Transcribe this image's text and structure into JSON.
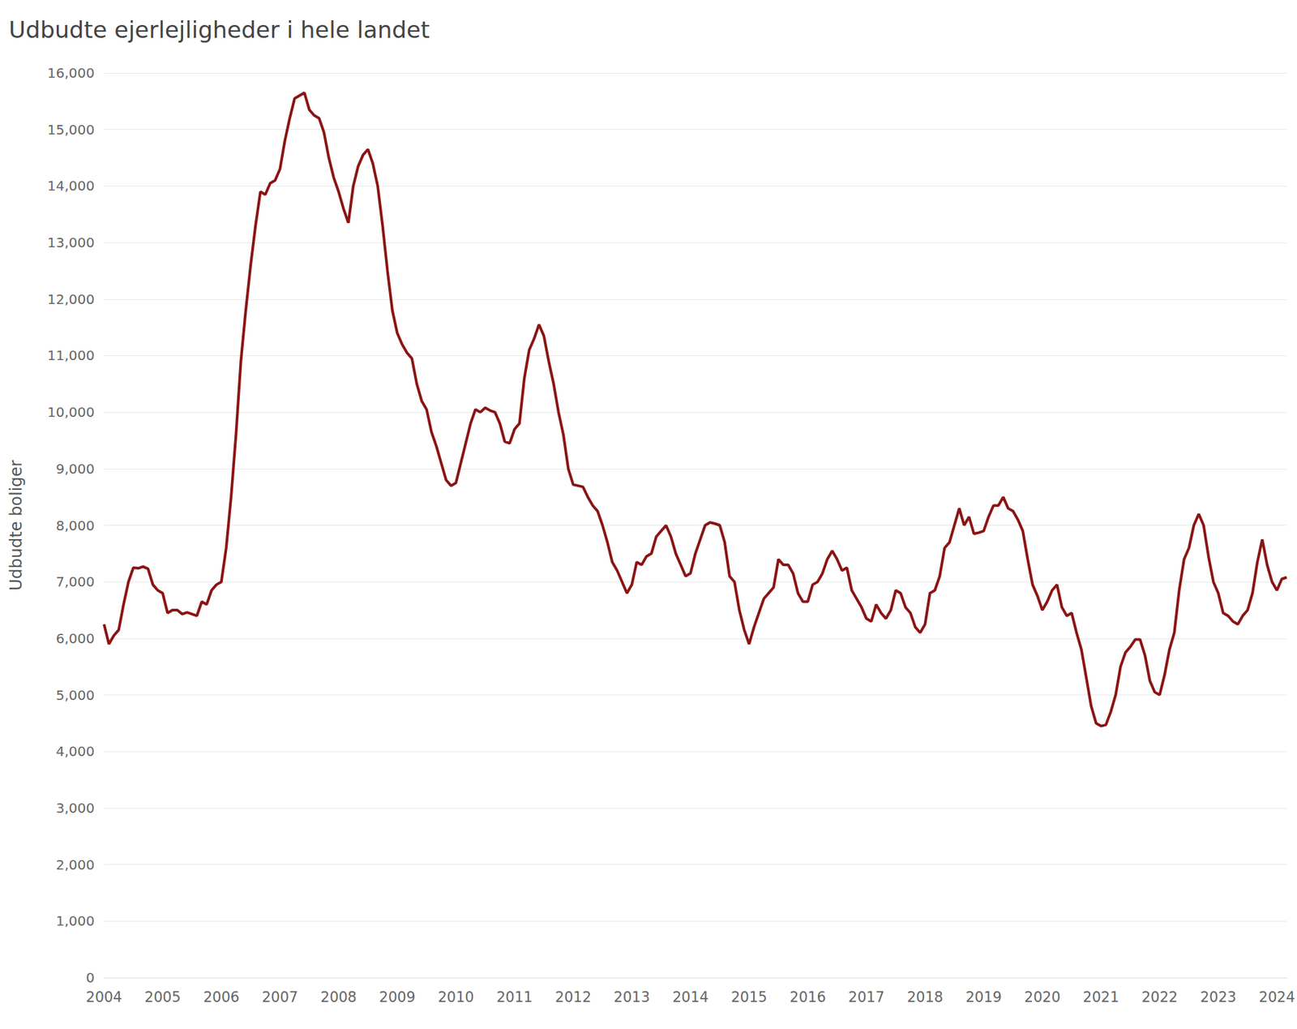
{
  "chart_data": {
    "type": "line",
    "title": "Udbudte ejerlejligheder i hele landet",
    "y_label": "Udbudte boliger",
    "color": "#8b1414",
    "grid": true,
    "categories": [
      "2004",
      null,
      null,
      null,
      null,
      null,
      null,
      null,
      null,
      null,
      null,
      null,
      "2005",
      null,
      null,
      null,
      null,
      null,
      null,
      null,
      null,
      null,
      null,
      null,
      "2006",
      null,
      null,
      null,
      null,
      null,
      null,
      null,
      null,
      null,
      null,
      null,
      "2007",
      null,
      null,
      null,
      null,
      null,
      null,
      null,
      null,
      null,
      null,
      null,
      "2008",
      null,
      null,
      null,
      null,
      null,
      null,
      null,
      null,
      null,
      null,
      null,
      "2009",
      null,
      null,
      null,
      null,
      null,
      null,
      null,
      null,
      null,
      null,
      null,
      "2010",
      null,
      null,
      null,
      null,
      null,
      null,
      null,
      null,
      null,
      null,
      null,
      "2011",
      null,
      null,
      null,
      null,
      null,
      null,
      null,
      null,
      null,
      null,
      null,
      "2012",
      null,
      null,
      null,
      null,
      null,
      null,
      null,
      null,
      null,
      null,
      null,
      "2013",
      null,
      null,
      null,
      null,
      null,
      null,
      null,
      null,
      null,
      null,
      null,
      "2014",
      null,
      null,
      null,
      null,
      null,
      null,
      null,
      null,
      null,
      null,
      null,
      "2015",
      null,
      null,
      null,
      null,
      null,
      null,
      null,
      null,
      null,
      null,
      null,
      "2016",
      null,
      null,
      null,
      null,
      null,
      null,
      null,
      null,
      null,
      null,
      null,
      "2017",
      null,
      null,
      null,
      null,
      null,
      null,
      null,
      null,
      null,
      null,
      null,
      "2018",
      null,
      null,
      null,
      null,
      null,
      null,
      null,
      null,
      null,
      null,
      null,
      "2019",
      null,
      null,
      null,
      null,
      null,
      null,
      null,
      null,
      null,
      null,
      null,
      "2020",
      null,
      null,
      null,
      null,
      null,
      null,
      null,
      null,
      null,
      null,
      null,
      "2021",
      null,
      null,
      null,
      null,
      null,
      null,
      null,
      null,
      null,
      null,
      null,
      "2022",
      null,
      null,
      null,
      null,
      null,
      null,
      null,
      null,
      null,
      null,
      null,
      "2023",
      null,
      null,
      null,
      null,
      null,
      null,
      null,
      null,
      null,
      null,
      null,
      "2024",
      null,
      null
    ],
    "values": [
      6250,
      5900,
      6050,
      6150,
      6600,
      7000,
      7250,
      7240,
      7270,
      7230,
      6950,
      6850,
      6800,
      6450,
      6500,
      6500,
      6430,
      6460,
      6430,
      6400,
      6650,
      6600,
      6850,
      6950,
      7000,
      7600,
      8500,
      9600,
      10900,
      11800,
      12600,
      13300,
      13900,
      13850,
      14050,
      14100,
      14300,
      14800,
      15200,
      15550,
      15600,
      15650,
      15350,
      15250,
      15200,
      14950,
      14500,
      14150,
      13900,
      13600,
      13350,
      14000,
      14350,
      14550,
      14650,
      14400,
      14000,
      13300,
      12500,
      11800,
      11400,
      11200,
      11050,
      10950,
      10500,
      10200,
      10050,
      9650,
      9400,
      9100,
      8800,
      8700,
      8750,
      9100,
      9450,
      9800,
      10050,
      10000,
      10080,
      10030,
      10000,
      9800,
      9480,
      9450,
      9700,
      9800,
      10600,
      11100,
      11300,
      11550,
      11350,
      10900,
      10500,
      10000,
      9600,
      9000,
      8720,
      8700,
      8680,
      8500,
      8350,
      8250,
      8000,
      7700,
      7350,
      7200,
      7000,
      6800,
      6950,
      7350,
      7300,
      7450,
      7500,
      7800,
      7900,
      8000,
      7800,
      7500,
      7300,
      7100,
      7150,
      7500,
      7750,
      8000,
      8050,
      8030,
      8000,
      7700,
      7100,
      7000,
      6500,
      6150,
      5900,
      6200,
      6450,
      6700,
      6800,
      6900,
      7400,
      7300,
      7300,
      7150,
      6800,
      6650,
      6650,
      6950,
      7000,
      7150,
      7400,
      7550,
      7400,
      7200,
      7250,
      6850,
      6700,
      6550,
      6350,
      6300,
      6600,
      6450,
      6350,
      6500,
      6850,
      6800,
      6550,
      6450,
      6200,
      6100,
      6250,
      6800,
      6850,
      7100,
      7600,
      7700,
      8000,
      8300,
      8000,
      8150,
      7850,
      7870,
      7900,
      8150,
      8350,
      8350,
      8500,
      8300,
      8250,
      8100,
      7900,
      7400,
      6950,
      6750,
      6500,
      6650,
      6850,
      6950,
      6550,
      6400,
      6450,
      6100,
      5800,
      5300,
      4800,
      4500,
      4450,
      4470,
      4700,
      5000,
      5500,
      5750,
      5850,
      5980,
      5980,
      5700,
      5250,
      5050,
      5000,
      5350,
      5800,
      6100,
      6850,
      7400,
      7600,
      8000,
      8200,
      8000,
      7450,
      7000,
      6800,
      6450,
      6400,
      6300,
      6250,
      6400,
      6500,
      6800,
      7350,
      7750,
      7300,
      7000,
      6850,
      7050,
      7080
    ],
    "ylim": [
      0,
      16000
    ],
    "yticks": [
      0,
      {
        "value": 1000,
        "label": "1,000"
      },
      {
        "value": 2000,
        "label": "2,000"
      },
      {
        "value": 3000,
        "label": "3,000"
      },
      {
        "value": 4000,
        "label": "4,000"
      },
      {
        "value": 5000,
        "label": "5,000"
      },
      {
        "value": 6000,
        "label": "6,000"
      },
      {
        "value": 7000,
        "label": "7,000"
      },
      {
        "value": 8000,
        "label": "8,000"
      },
      {
        "value": 9000,
        "label": "9,000"
      },
      {
        "value": 10000,
        "label": "10,000"
      },
      {
        "value": 11000,
        "label": "11,000"
      },
      {
        "value": 12000,
        "label": "12,000"
      },
      {
        "value": 13000,
        "label": "13,000"
      },
      {
        "value": 14000,
        "label": "14,000"
      },
      {
        "value": 15000,
        "label": "15,000"
      },
      {
        "value": 16000,
        "label": "16,000"
      }
    ]
  }
}
